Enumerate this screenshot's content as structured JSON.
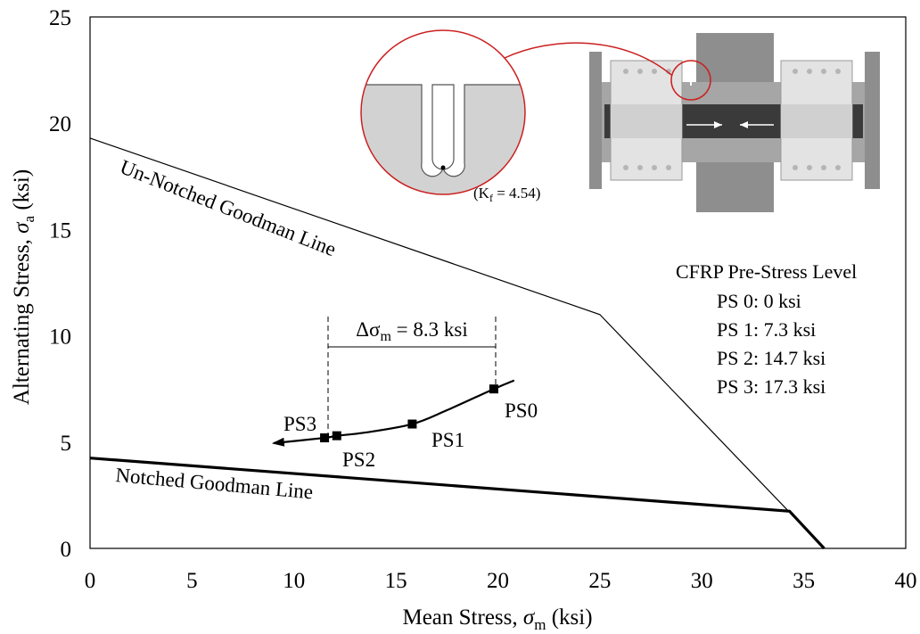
{
  "chart_data": {
    "type": "line",
    "xlabel": "Mean Stress, σm (ksi)",
    "xlabel_parts": {
      "main": "Mean Stress, ",
      "symbol": "σ",
      "sub": "m",
      "unit": " (ksi)"
    },
    "ylabel": "Alternating Stress, σa (ksi)",
    "ylabel_parts": {
      "main": "Alternating Stress, ",
      "symbol": "σ",
      "sub": "a",
      "unit": " (ksi)"
    },
    "xlim": [
      0,
      40
    ],
    "ylim": [
      0,
      25
    ],
    "x_ticks": [
      "0",
      "5",
      "10",
      "15",
      "20",
      "25",
      "30",
      "35",
      "40"
    ],
    "y_ticks": [
      "0",
      "5",
      "10",
      "15",
      "20",
      "25"
    ],
    "grid": false,
    "series": [
      {
        "name": "Un-Notched Goodman Line",
        "color": "#000000",
        "points": [
          [
            0,
            19.3
          ],
          [
            25.0,
            11.0
          ],
          [
            36.0,
            0
          ]
        ]
      },
      {
        "name": "Notched Goodman Line",
        "color": "#000000",
        "points": [
          [
            0,
            4.25
          ],
          [
            34.3,
            1.75
          ],
          [
            36.0,
            0
          ]
        ]
      },
      {
        "name": "Pre-stress trend",
        "color": "#000000",
        "points": [
          [
            20.8,
            7.9
          ],
          [
            19.8,
            7.5
          ],
          [
            17.5,
            6.5
          ],
          [
            15.8,
            5.85
          ],
          [
            13.5,
            5.45
          ],
          [
            12.1,
            5.3
          ],
          [
            11.5,
            5.2
          ],
          [
            9.0,
            4.95
          ]
        ],
        "arrow_end": true
      }
    ],
    "markers": [
      {
        "label": "PS0",
        "x": 19.8,
        "y": 7.5
      },
      {
        "label": "PS1",
        "x": 15.8,
        "y": 5.85
      },
      {
        "label": "PS2",
        "x": 12.1,
        "y": 5.3
      },
      {
        "label": "PS3",
        "x": 11.5,
        "y": 5.2
      }
    ],
    "delta_annotation": {
      "text": "Δσm = 8.3 ksi",
      "parts": {
        "pre": "Δσ",
        "sub": "m",
        "post": " = 8.3 ksi"
      },
      "x_start": 11.5,
      "x_end": 19.8,
      "y": 9.9
    },
    "legend": {
      "placement": "right",
      "title": "CFRP Pre-Stress Level",
      "entries": [
        "PS 0:  0 ksi",
        "PS 1:  7.3 ksi",
        "PS 2:  14.7 ksi",
        "PS 3:  17.3 ksi"
      ]
    },
    "inset": {
      "kf_label": "(Kf = 4.54)",
      "kf_parts": {
        "pre": "(K",
        "sub": "f",
        "post": " = 4.54)"
      },
      "accent_color": "#cc1f1f"
    }
  }
}
